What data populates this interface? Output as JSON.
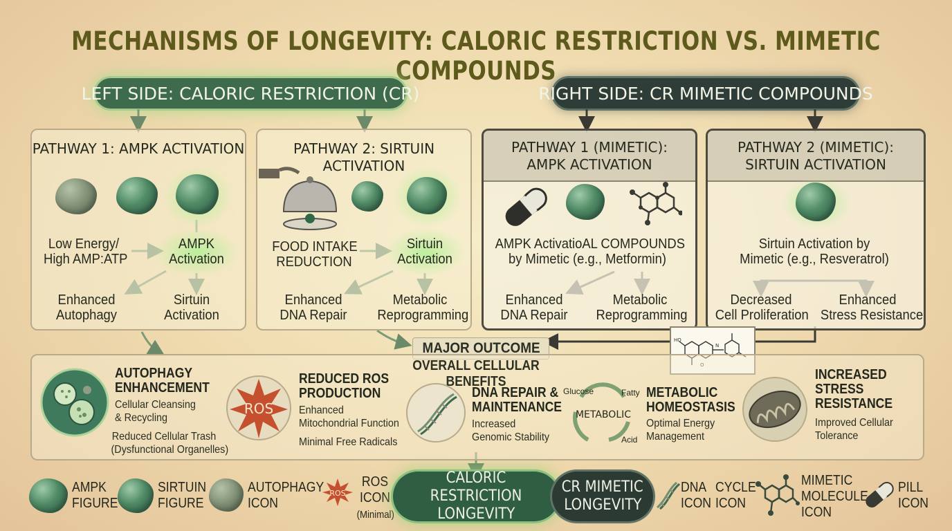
{
  "title": "MECHANISMS OF LONGEVITY: CALORIC RESTRICTION VS. MIMETIC COMPOUNDS",
  "banners": {
    "left": "LEFT SIDE: CALORIC RESTRICTION (CR)",
    "right": "RIGHT SIDE: CR MIMETIC COMPOUNDS"
  },
  "panels": {
    "p1": {
      "heading": "PATHWAY 1: AMPK ACTIVATION",
      "input_line1": "Low Energy/",
      "input_line2": "High AMP:ATP",
      "center_line1": "AMPK",
      "center_line2": "Activation",
      "out_left_line1": "Enhanced",
      "out_left_line2": "Autophagy",
      "out_right_line1": "Sirtuin",
      "out_right_line2": "Activation"
    },
    "p2": {
      "heading": "PATHWAY 2: SIRTUIN ACTIVATION",
      "input_line1": "FOOD INTAKE",
      "input_line2": "REDUCTION",
      "center_line1": "Sirtuin",
      "center_line2": "Activation",
      "out_left_line1": "Enhanced",
      "out_left_line2": "DNA Repair",
      "out_right_line1": "Metabolic",
      "out_right_line2": "Reprogramming"
    },
    "p3": {
      "heading_line1": "PATHWAY 1 (MIMETIC):",
      "heading_line2": "AMPK ACTIVATION",
      "center_line1": "AMPK ActivatioAL COMPOUNDS",
      "center_line2": "by Mimetic (e.g., Metformin)",
      "out_left_line1": "Enhanced",
      "out_left_line2": "DNA Repair",
      "out_right_line1": "Metabolic",
      "out_right_line2": "Reprogramming"
    },
    "p4": {
      "heading_line1": "PATHWAY 2 (MIMETIC):",
      "heading_line2": "SIRTUIN ACTIVATION",
      "center_line1": "Sirtuin Activation by",
      "center_line2": "Mimetic (e.g., Resveratrol)",
      "out_left_line1": "Decreased",
      "out_left_line2": "Cell Proliferation",
      "out_right_line1": "Enhanced",
      "out_right_line2": "Stress Resistance"
    }
  },
  "major": {
    "label": "MAJOR OUTCOME",
    "sublabel": "OVERALL CELLULAR BENEFITS"
  },
  "outcomes": [
    {
      "title_line1": "AUTOPHAGY",
      "title_line2": "ENHANCEMENT",
      "desc_line1": "Cellular Cleansing",
      "desc_line2": "& Recycling",
      "desc_line3": "Reduced Cellular Trash",
      "desc_line4": "(Dysfunctional Organelles)"
    },
    {
      "title_line1": "REDUCED ROS",
      "title_line2": "PRODUCTION",
      "desc_line1": "Enhanced",
      "desc_line2": "Mitochondrial Function",
      "desc_line3": "Minimal Free Radicals",
      "icon_label": "ROS"
    },
    {
      "title_line1": "DNA REPAIR &",
      "title_line2": "MAINTENANCE",
      "desc_line1": "Increased",
      "desc_line2": "Genomic Stability"
    },
    {
      "title_line1": "METABOLIC",
      "title_line2": "HOMEOSTASIS",
      "desc_line1": "Optimal Energy",
      "desc_line2": "Management",
      "cycle_center": "METABOLIC",
      "cycle_top_left": "Glucose",
      "cycle_top_right": "Fatty",
      "cycle_bottom_right": "Acid"
    },
    {
      "title_line1": "INCREASED",
      "title_line2": "STRESS",
      "title_line3": "RESISTANCE",
      "desc_line1": "Improved Cellular",
      "desc_line2": "Tolerance"
    }
  ],
  "legend": {
    "ampk_line1": "AMPK",
    "ampk_line2": "FIGURE",
    "sirtuin_line1": "SIRTUIN",
    "sirtuin_line2": "FIGURE",
    "autophagy_line1": "AUTOPHAGY",
    "autophagy_line2": "ICON",
    "ros_line1": "ROS",
    "ros_line2": "ICON",
    "ros_line3": "(Minimal)",
    "ros_badge": "ROS",
    "dna_line1": "DNA",
    "dna_line2": "ICON",
    "cycle_line1": "CYCLE",
    "cycle_line2": "ICON",
    "mimetic_line1": "MIMETIC",
    "mimetic_line2": "MOLECULE",
    "mimetic_line3": "ICON",
    "pill_line1": "PILL",
    "pill_line2": "ICON"
  },
  "finals": {
    "cr_line1": "CALORIC RESTRICTION",
    "cr_line2": "LONGEVITY",
    "mimetic_line1": "CR MIMETIC",
    "mimetic_line2": "LONGEVITY"
  },
  "colors": {
    "accent_green": "#3e6b4c",
    "dark_banner": "#2e3d37",
    "title": "#5d5a1c",
    "ros_red": "#c4502f"
  }
}
